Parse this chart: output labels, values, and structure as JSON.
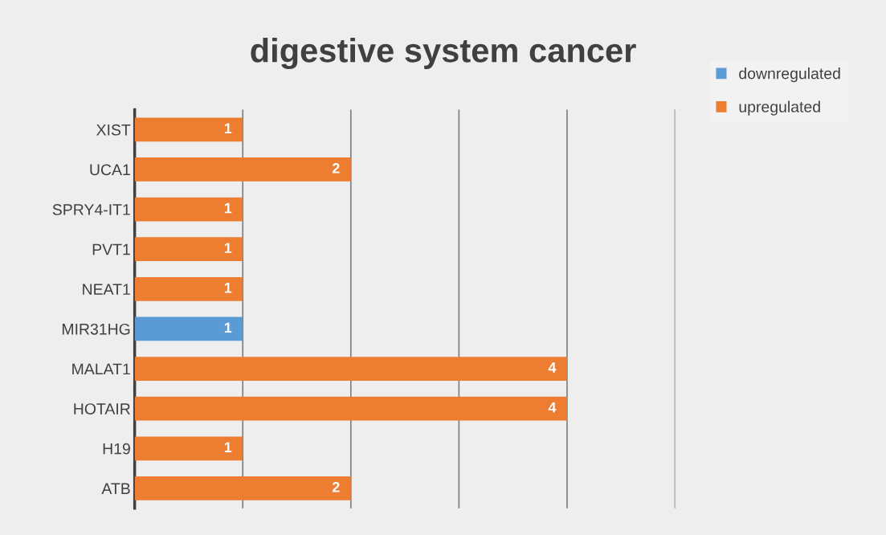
{
  "chart_data": {
    "type": "bar",
    "orientation": "horizontal",
    "title": "digestive system cancer",
    "categories": [
      "XIST",
      "UCA1",
      "SPRY4-IT1",
      "PVT1",
      "NEAT1",
      "MIR31HG",
      "MALAT1",
      "HOTAIR",
      "H19",
      "ATB"
    ],
    "series": [
      {
        "name": "downregulated",
        "color": "#5b9bd5",
        "values": [
          null,
          null,
          null,
          null,
          null,
          1,
          null,
          null,
          null,
          null
        ]
      },
      {
        "name": "upregulated",
        "color": "#ed7d31",
        "values": [
          1,
          2,
          1,
          1,
          1,
          null,
          4,
          4,
          1,
          2
        ]
      }
    ],
    "xlim": [
      0,
      5
    ],
    "xticks": [
      {
        "value": 1,
        "label": null
      },
      {
        "value": 2,
        "label": null
      },
      {
        "value": 3,
        "label": null
      },
      {
        "value": 4,
        "label": null
      },
      {
        "value": 5,
        "label": null
      }
    ],
    "grid": "x",
    "legend": "top right",
    "data_labels": true,
    "tick_labels": "y"
  }
}
